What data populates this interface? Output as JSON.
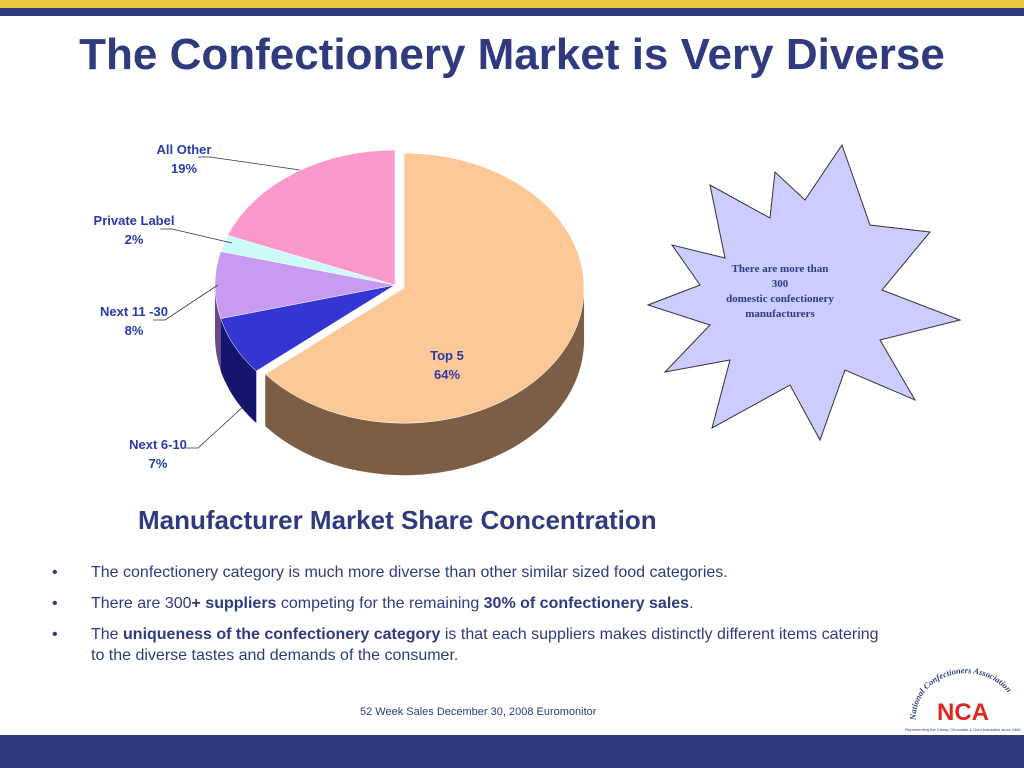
{
  "title": "The Confectionery Market is Very Diverse",
  "chart_data": {
    "type": "pie",
    "title": "",
    "slices": [
      {
        "label": "Top 5",
        "value": 64,
        "display": "64%",
        "color": "#fdc897",
        "side_color": "#7b5e45"
      },
      {
        "label": "Next 6-10",
        "value": 7,
        "display": "7%",
        "color": "#3535d4",
        "side_color": "#15156e"
      },
      {
        "label": "Next 11 -30",
        "value": 8,
        "display": "8%",
        "color": "#c99af2",
        "side_color": "#6a4a86"
      },
      {
        "label": "Private Label",
        "value": 2,
        "display": "2%",
        "color": "#ccfbf8",
        "side_color": "#6f8c8a"
      },
      {
        "label": "All Other",
        "value": 19,
        "display": "19%",
        "color": "#fc99cc",
        "side_color": "#8a4a6a"
      }
    ]
  },
  "callout": {
    "line1": "There are more than",
    "line2": "300",
    "line3": "domestic confectionery",
    "line4": "manufacturers",
    "fill_color": "#ccccff"
  },
  "subtitle": "Manufacturer Market Share Concentration",
  "bullets": {
    "b1": "The confectionery category is much more diverse than other similar sized food categories.",
    "b2_a": "There are 300",
    "b2_b": "+ suppliers",
    "b2_c": " competing for the remaining ",
    "b2_d": "30% of confectionery sales",
    "b2_e": ".",
    "b3_a": "The ",
    "b3_b": "uniqueness of the confectionery category",
    "b3_c": " is that each suppliers makes distinctly different items catering to the diverse tastes and demands of the consumer."
  },
  "bullet_marker": "•",
  "source": "52 Week Sales December 30, 2008 Euromonitor",
  "logo": {
    "arc_text": "National Confectioners Association",
    "letters": "NCA",
    "tagline": "Representing the Candy, Chocolate & Gum Industries since 1884"
  },
  "colors": {
    "navy": "#2f3b7e",
    "yellow": "#e7c640",
    "label_blue": "#2a3aa8"
  }
}
